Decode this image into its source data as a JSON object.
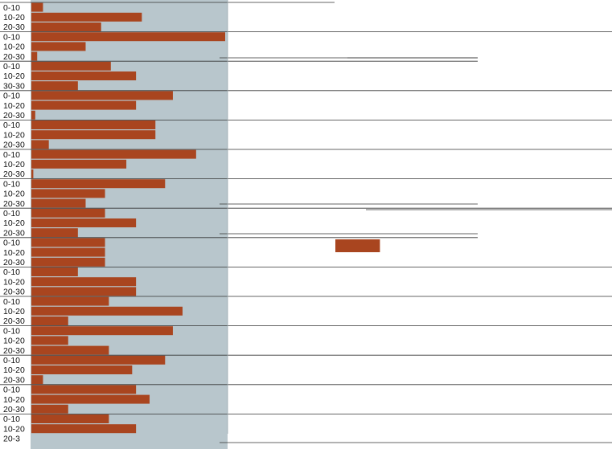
{
  "chart_data": {
    "type": "bar",
    "orientation": "horizontal",
    "title": "",
    "xlabel": "",
    "ylabel": "",
    "xlim": [
      0,
      100
    ],
    "grid": false,
    "legend": "none",
    "colors": {
      "bar": "#a9451f",
      "panel": "#b8c6cc",
      "label_bg": "#ffffff",
      "rule": "#333333"
    },
    "groups": [
      {
        "rows": [
          {
            "label": "0-10",
            "value": 6
          },
          {
            "label": "10-20",
            "value": 57
          },
          {
            "label": "20-30",
            "value": 36
          }
        ]
      },
      {
        "rows": [
          {
            "label": "0-10",
            "value": 100
          },
          {
            "label": "10-20",
            "value": 28
          },
          {
            "label": "20-30",
            "value": 3
          }
        ]
      },
      {
        "rows": [
          {
            "label": "0-10",
            "value": 41
          },
          {
            "label": "10-20",
            "value": 54
          },
          {
            "label": "30-30",
            "value": 24
          }
        ]
      },
      {
        "rows": [
          {
            "label": "0-10",
            "value": 73
          },
          {
            "label": "10-20",
            "value": 54
          },
          {
            "label": "20-30",
            "value": 2
          }
        ]
      },
      {
        "rows": [
          {
            "label": "0-10",
            "value": 64
          },
          {
            "label": "10-20",
            "value": 64
          },
          {
            "label": "20-30",
            "value": 9
          }
        ]
      },
      {
        "rows": [
          {
            "label": "0-10",
            "value": 85
          },
          {
            "label": "10-20",
            "value": 49
          },
          {
            "label": "20-30",
            "value": 1
          }
        ]
      },
      {
        "rows": [
          {
            "label": "0-10",
            "value": 69
          },
          {
            "label": "10-20",
            "value": 38
          },
          {
            "label": "20-30",
            "value": 28
          }
        ]
      },
      {
        "rows": [
          {
            "label": "0-10",
            "value": 38
          },
          {
            "label": "10-20",
            "value": 54
          },
          {
            "label": "20-30",
            "value": 24
          }
        ]
      },
      {
        "rows": [
          {
            "label": "0-10",
            "value": 38
          },
          {
            "label": "10-20",
            "value": 38
          },
          {
            "label": "20-30",
            "value": 38
          }
        ]
      },
      {
        "rows": [
          {
            "label": "0-10",
            "value": 24
          },
          {
            "label": "10-20",
            "value": 54
          },
          {
            "label": "20-30",
            "value": 54
          }
        ]
      },
      {
        "rows": [
          {
            "label": "0-10",
            "value": 40
          },
          {
            "label": "10-20",
            "value": 78
          },
          {
            "label": "20-30",
            "value": 19
          }
        ]
      },
      {
        "rows": [
          {
            "label": "0-10",
            "value": 73
          },
          {
            "label": "10-20",
            "value": 19
          },
          {
            "label": "20-30",
            "value": 40
          }
        ]
      },
      {
        "rows": [
          {
            "label": "0-10",
            "value": 69
          },
          {
            "label": "10-20",
            "value": 52
          },
          {
            "label": "20-30",
            "value": 6
          }
        ]
      },
      {
        "rows": [
          {
            "label": "0-10",
            "value": 54
          },
          {
            "label": "10-20",
            "value": 61
          },
          {
            "label": "20-30",
            "value": 19
          }
        ]
      },
      {
        "rows": [
          {
            "label": "0-10",
            "value": 40
          },
          {
            "label": "10-20",
            "value": 54
          },
          {
            "label": "20-3",
            "value": 0
          }
        ]
      }
    ],
    "extra_marks": [
      {
        "value": 23
      }
    ]
  }
}
